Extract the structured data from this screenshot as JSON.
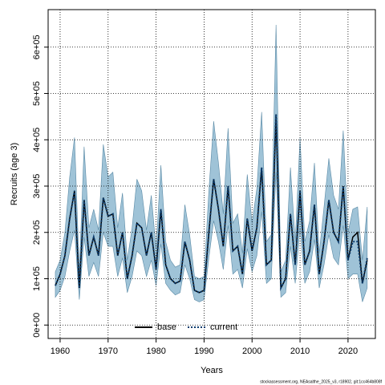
{
  "chart_data": {
    "type": "line",
    "x_label": "Years",
    "y_label": "Recruits (age 3)",
    "footer": "stockassessment.org, NEAsalthe_2025_v3, r18902, git:1cc464b808f",
    "x": [
      1959,
      1960,
      1961,
      1962,
      1963,
      1964,
      1965,
      1966,
      1967,
      1968,
      1969,
      1970,
      1971,
      1972,
      1973,
      1974,
      1975,
      1976,
      1977,
      1978,
      1979,
      1980,
      1981,
      1982,
      1983,
      1984,
      1985,
      1986,
      1987,
      1988,
      1989,
      1990,
      1991,
      1992,
      1993,
      1994,
      1995,
      1996,
      1997,
      1998,
      1999,
      2000,
      2001,
      2002,
      2003,
      2004,
      2005,
      2006,
      2007,
      2008,
      2009,
      2010,
      2011,
      2012,
      2013,
      2014,
      2015,
      2016,
      2017,
      2018,
      2019,
      2020,
      2021,
      2022,
      2023,
      2024
    ],
    "series": [
      {
        "name": "base",
        "color": "#000000",
        "style": "solid",
        "values": [
          85000,
          110000,
          150000,
          230000,
          290000,
          80000,
          270000,
          150000,
          190000,
          150000,
          275000,
          235000,
          240000,
          150000,
          200000,
          100000,
          150000,
          220000,
          210000,
          150000,
          200000,
          120000,
          250000,
          130000,
          100000,
          90000,
          95000,
          180000,
          140000,
          75000,
          70000,
          75000,
          200000,
          315000,
          250000,
          170000,
          300000,
          160000,
          170000,
          110000,
          230000,
          160000,
          210000,
          340000,
          130000,
          140000,
          455000,
          80000,
          100000,
          240000,
          130000,
          290000,
          130000,
          160000,
          260000,
          110000,
          180000,
          270000,
          200000,
          180000,
          300000,
          140000,
          190000,
          200000,
          90000,
          140000
        ]
      },
      {
        "name": "current",
        "color": "#0b3c6e",
        "style": "dotted",
        "band_color": "#9fc3d7",
        "values": [
          85000,
          110000,
          150000,
          230000,
          290000,
          80000,
          270000,
          150000,
          190000,
          150000,
          275000,
          235000,
          240000,
          150000,
          200000,
          100000,
          150000,
          220000,
          210000,
          150000,
          200000,
          120000,
          250000,
          130000,
          100000,
          90000,
          95000,
          180000,
          140000,
          75000,
          70000,
          75000,
          200000,
          315000,
          250000,
          170000,
          300000,
          160000,
          170000,
          110000,
          230000,
          160000,
          210000,
          340000,
          130000,
          140000,
          455000,
          80000,
          100000,
          240000,
          130000,
          290000,
          130000,
          160000,
          260000,
          110000,
          180000,
          270000,
          200000,
          180000,
          300000,
          140000,
          180000,
          180000,
          90000,
          145000
        ],
        "lower": [
          60000,
          75000,
          105000,
          160000,
          205000,
          55000,
          190000,
          105000,
          135000,
          105000,
          200000,
          170000,
          170000,
          105000,
          145000,
          70000,
          105000,
          160000,
          150000,
          105000,
          140000,
          85000,
          175000,
          90000,
          75000,
          65000,
          70000,
          130000,
          100000,
          55000,
          50000,
          55000,
          145000,
          225000,
          180000,
          120000,
          215000,
          110000,
          120000,
          80000,
          165000,
          115000,
          150000,
          245000,
          90000,
          100000,
          330000,
          60000,
          70000,
          170000,
          90000,
          210000,
          90000,
          115000,
          185000,
          80000,
          130000,
          195000,
          145000,
          130000,
          215000,
          100000,
          110000,
          110000,
          50000,
          80000
        ],
        "upper": [
          115000,
          140000,
          200000,
          320000,
          405000,
          115000,
          385000,
          210000,
          250000,
          205000,
          390000,
          320000,
          330000,
          210000,
          285000,
          140000,
          210000,
          315000,
          290000,
          205000,
          280000,
          165000,
          345000,
          180000,
          140000,
          125000,
          130000,
          260000,
          195000,
          105000,
          100000,
          105000,
          290000,
          440000,
          350000,
          240000,
          425000,
          220000,
          240000,
          155000,
          325000,
          220000,
          295000,
          460000,
          180000,
          195000,
          648000,
          115000,
          140000,
          340000,
          180000,
          405000,
          180000,
          225000,
          350000,
          155000,
          255000,
          360000,
          280000,
          250000,
          420000,
          200000,
          250000,
          255000,
          140000,
          255000
        ]
      }
    ],
    "xlim": [
      1957.5,
      2025.7
    ],
    "ylim": [
      -29000,
      681000
    ],
    "xticks": [
      1960,
      1970,
      1980,
      1990,
      2000,
      2010,
      2020
    ],
    "yticks": [
      {
        "value": 0,
        "label": "0e+00"
      },
      {
        "value": 100000,
        "label": "1e+05"
      },
      {
        "value": 200000,
        "label": "2e+05"
      },
      {
        "value": 300000,
        "label": "3e+05"
      },
      {
        "value": 400000,
        "label": "4e+05"
      },
      {
        "value": 500000,
        "label": "5e+05"
      },
      {
        "value": 600000,
        "label": "6e+05"
      }
    ],
    "grid": true,
    "legend": "bottom"
  }
}
